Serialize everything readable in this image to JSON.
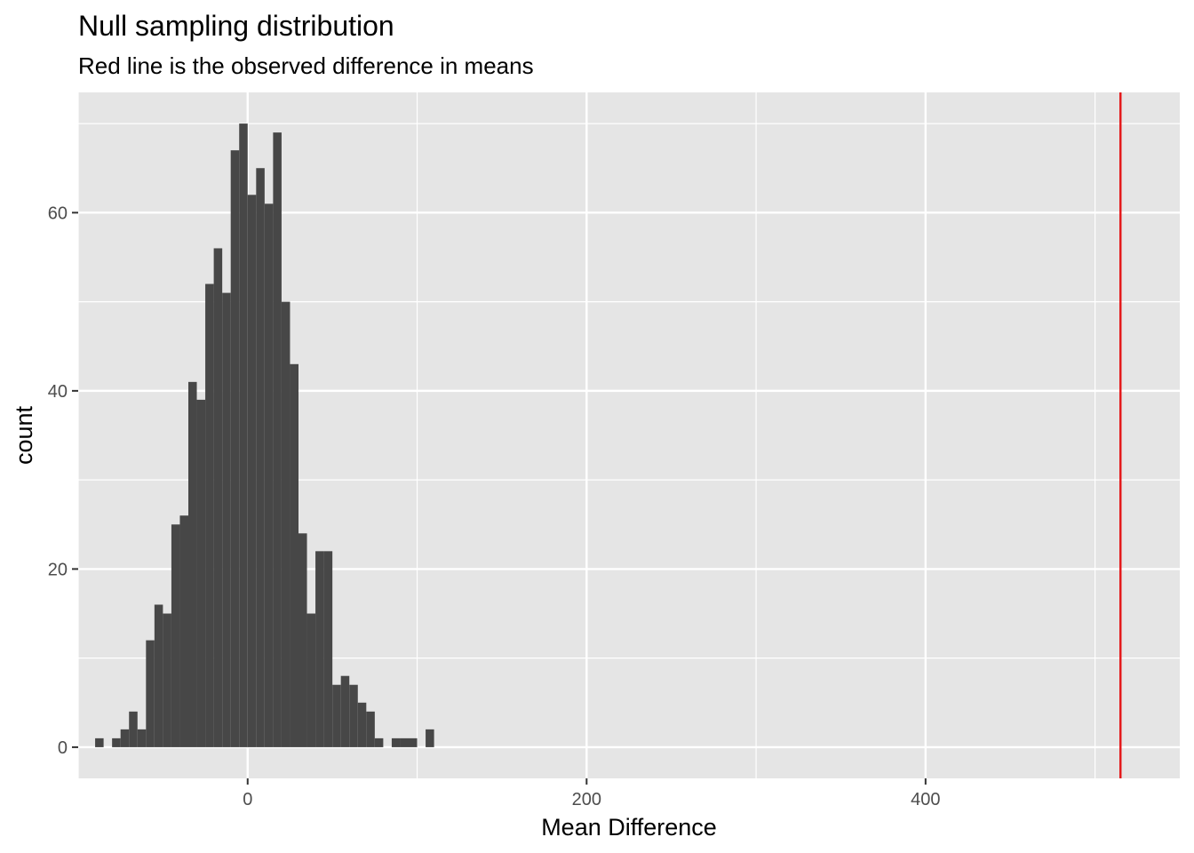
{
  "chart_data": {
    "type": "bar",
    "title": "Null sampling distribution",
    "subtitle": "Red line is the observed difference in means",
    "xlabel": "Mean Difference",
    "ylabel": "count",
    "xlim": [
      -100,
      550
    ],
    "ylim": [
      -3.5,
      73.5
    ],
    "x_ticks": [
      0,
      200,
      400
    ],
    "x_tick_labels": [
      "0",
      "200",
      "400"
    ],
    "y_ticks": [
      0,
      20,
      40,
      60
    ],
    "y_tick_labels": [
      "0",
      "20",
      "40",
      "60"
    ],
    "grid": true,
    "bin_width": 5,
    "bins": [
      {
        "start": -90,
        "count": 1
      },
      {
        "start": -85,
        "count": 0
      },
      {
        "start": -80,
        "count": 1
      },
      {
        "start": -75,
        "count": 2
      },
      {
        "start": -70,
        "count": 4
      },
      {
        "start": -65,
        "count": 2
      },
      {
        "start": -60,
        "count": 12
      },
      {
        "start": -55,
        "count": 16
      },
      {
        "start": -50,
        "count": 15
      },
      {
        "start": -45,
        "count": 25
      },
      {
        "start": -40,
        "count": 26
      },
      {
        "start": -35,
        "count": 41
      },
      {
        "start": -30,
        "count": 39
      },
      {
        "start": -25,
        "count": 52
      },
      {
        "start": -20,
        "count": 56
      },
      {
        "start": -15,
        "count": 51
      },
      {
        "start": -10,
        "count": 67
      },
      {
        "start": -5,
        "count": 70
      },
      {
        "start": 0,
        "count": 62
      },
      {
        "start": 5,
        "count": 65
      },
      {
        "start": 10,
        "count": 61
      },
      {
        "start": 15,
        "count": 69
      },
      {
        "start": 20,
        "count": 50
      },
      {
        "start": 25,
        "count": 43
      },
      {
        "start": 30,
        "count": 24
      },
      {
        "start": 35,
        "count": 15
      },
      {
        "start": 40,
        "count": 22
      },
      {
        "start": 45,
        "count": 22
      },
      {
        "start": 50,
        "count": 7
      },
      {
        "start": 55,
        "count": 8
      },
      {
        "start": 60,
        "count": 7
      },
      {
        "start": 65,
        "count": 5
      },
      {
        "start": 70,
        "count": 4
      },
      {
        "start": 75,
        "count": 1
      },
      {
        "start": 80,
        "count": 0
      },
      {
        "start": 85,
        "count": 1
      },
      {
        "start": 90,
        "count": 1
      },
      {
        "start": 95,
        "count": 1
      },
      {
        "start": 100,
        "count": 0
      },
      {
        "start": 105,
        "count": 2
      }
    ],
    "observed_line": {
      "x": 515,
      "color": "#e41a1c"
    },
    "colors": {
      "bar": "#474747",
      "panel": "#e5e5e5",
      "grid": "#ffffff"
    }
  }
}
